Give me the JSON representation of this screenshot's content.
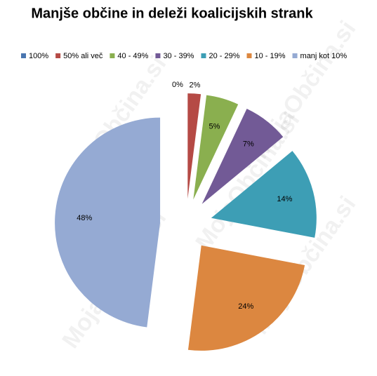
{
  "chart_data": {
    "type": "pie",
    "title": "Manjše občine in deleži koalicijskih strank",
    "watermark": "MojaObčina.si",
    "categories": [
      "100%",
      "50% ali več",
      "40 - 49%",
      "30 - 39%",
      "20 - 29%",
      "10 - 19%",
      "manj kot 10%"
    ],
    "values": [
      0,
      2,
      5,
      7,
      14,
      24,
      48
    ],
    "value_labels": [
      "0%",
      "2%",
      "5%",
      "7%",
      "14%",
      "24%",
      "48%"
    ],
    "colors": [
      "#4a76b0",
      "#b54a45",
      "#8aaf4f",
      "#725a96",
      "#3d9eb5",
      "#dc8740",
      "#95aad3"
    ],
    "legend": "top",
    "exploded": true
  }
}
